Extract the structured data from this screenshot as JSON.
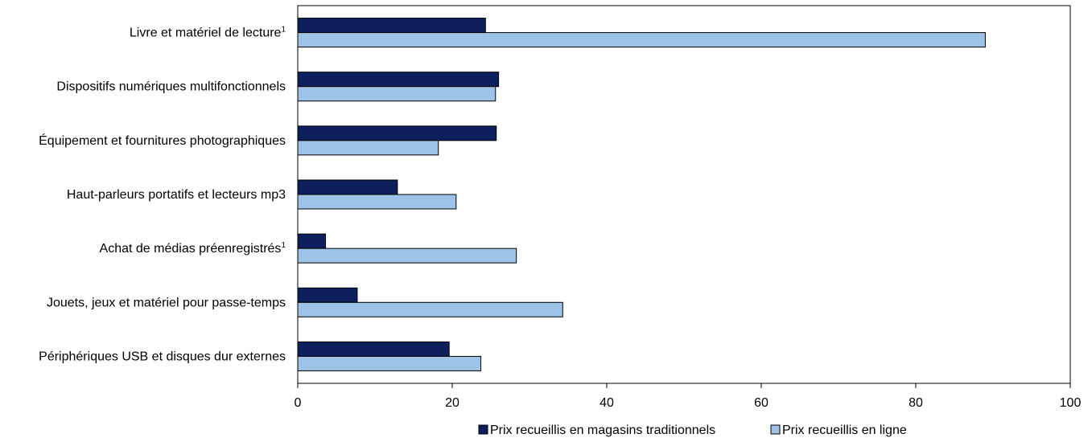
{
  "chart_data": {
    "type": "bar",
    "orientation": "horizontal",
    "categories": [
      "Livre et matériel de lecture",
      "Dispositifs numériques multifonctionnels",
      "Équipement et fournitures photographiques",
      "Haut-parleurs portatifs et lecteurs mp3",
      "Achat de médias préenregistrés",
      "Jouets, jeux et matériel pour passe-temps",
      "Périphériques USB et disques dur externes"
    ],
    "category_footnotes": [
      "1",
      "",
      "",
      "",
      "1",
      "",
      ""
    ],
    "series": [
      {
        "name": "Prix recueillis en magasins traditionnels",
        "color": "#0d1f5c",
        "values": [
          24.3,
          26.0,
          25.7,
          12.9,
          3.6,
          7.7,
          19.6
        ]
      },
      {
        "name": "Prix recueillis en ligne",
        "color": "#9dc3e6",
        "values": [
          89.0,
          25.6,
          18.2,
          20.5,
          28.3,
          34.3,
          23.7
        ]
      }
    ],
    "xlim": [
      0,
      100
    ],
    "xticks": [
      "0",
      "20",
      "40",
      "60",
      "80",
      "100"
    ],
    "title": "",
    "xlabel": "",
    "ylabel": "",
    "grid": false,
    "legend_position": "bottom"
  }
}
